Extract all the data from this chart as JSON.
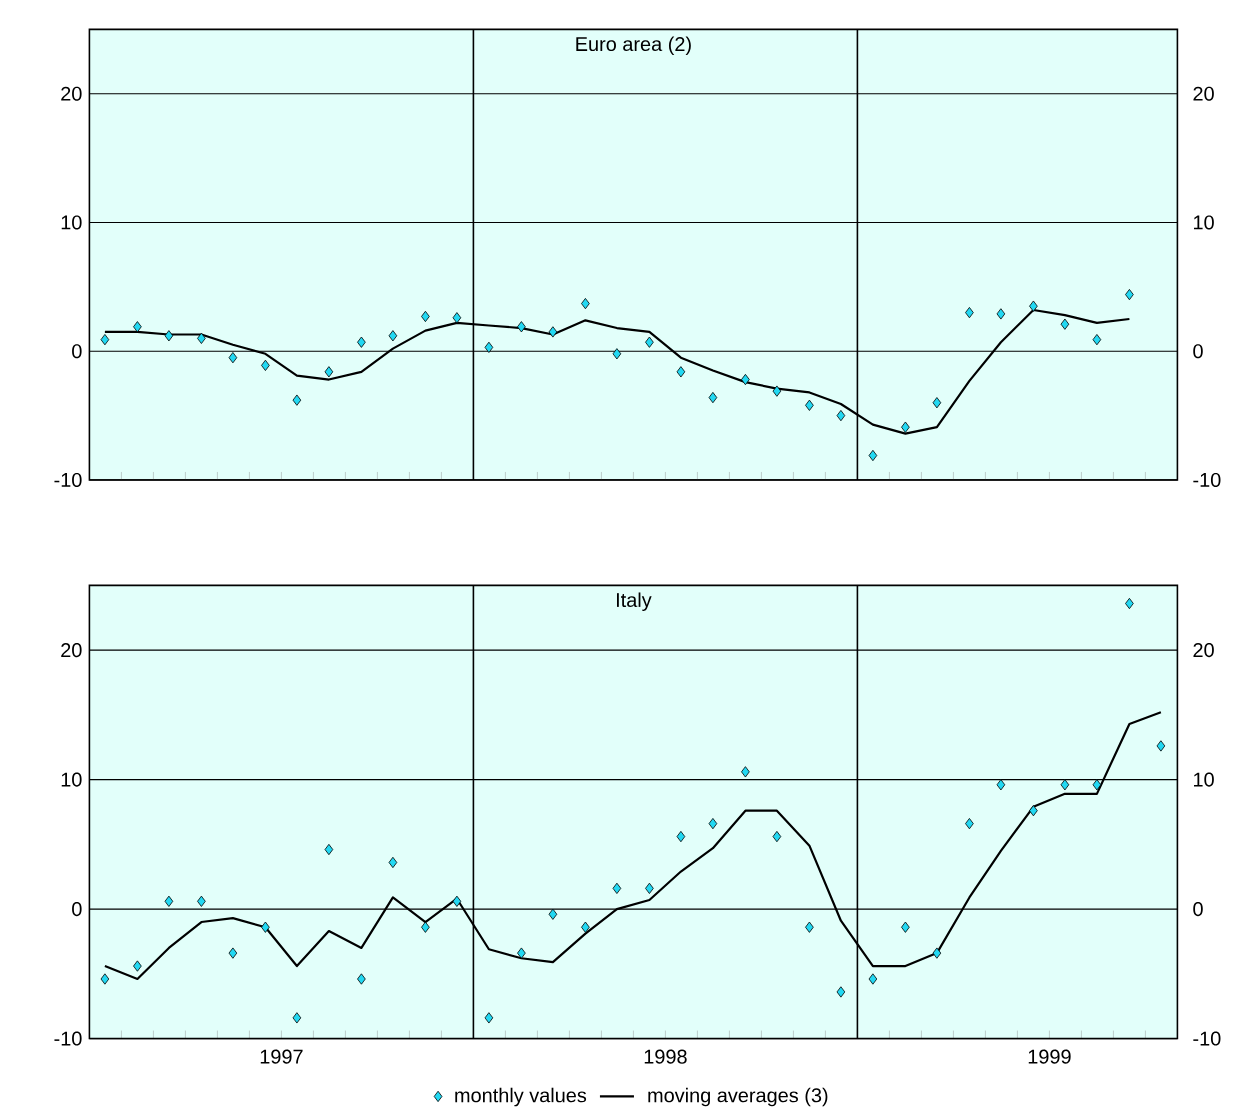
{
  "chart_data": [
    {
      "type": "line",
      "title": "Euro area (2)",
      "xlim": [
        "1997-01-01",
        "1999-11-01"
      ],
      "ylim": [
        -10,
        25
      ],
      "yticks": [
        -10,
        0,
        10,
        20
      ],
      "y2lim": [
        -10,
        25
      ],
      "y2ticks": [
        -10,
        0,
        10,
        20
      ],
      "xticks": [
        {
          "value": "1997-02-01",
          "label": null
        },
        {
          "value": "1997-03-01",
          "label": null
        },
        {
          "value": "1997-04-01",
          "label": null
        },
        {
          "value": "1997-05-01",
          "label": null
        },
        {
          "value": "1997-06-01",
          "label": null
        },
        {
          "value": "1997-07-01",
          "label": null
        },
        {
          "value": "1997-08-01",
          "label": null
        },
        {
          "value": "1997-09-01",
          "label": null
        },
        {
          "value": "1997-10-01",
          "label": null
        },
        {
          "value": "1997-11-01",
          "label": null
        },
        {
          "value": "1997-12-01",
          "label": null
        },
        {
          "value": "1998-01-01",
          "label": null
        },
        {
          "value": "1998-02-01",
          "label": null
        },
        {
          "value": "1998-03-01",
          "label": null
        },
        {
          "value": "1998-04-01",
          "label": null
        },
        {
          "value": "1998-05-01",
          "label": null
        },
        {
          "value": "1998-06-01",
          "label": null
        },
        {
          "value": "1998-07-01",
          "label": null
        },
        {
          "value": "1998-08-01",
          "label": null
        },
        {
          "value": "1998-09-01",
          "label": null
        },
        {
          "value": "1998-10-01",
          "label": null
        },
        {
          "value": "1998-11-01",
          "label": null
        },
        {
          "value": "1998-12-01",
          "label": null
        },
        {
          "value": "1999-01-01",
          "label": null
        },
        {
          "value": "1999-02-01",
          "label": null
        },
        {
          "value": "1999-03-01",
          "label": null
        },
        {
          "value": "1999-04-01",
          "label": null
        },
        {
          "value": "1999-05-01",
          "label": null
        },
        {
          "value": "1999-06-01",
          "label": null
        },
        {
          "value": "1999-07-01",
          "label": null
        },
        {
          "value": "1999-08-01",
          "label": null
        },
        {
          "value": "1999-09-01",
          "label": null
        },
        {
          "value": "1999-10-01",
          "label": null
        }
      ],
      "tick_labels": "y",
      "grid": "y",
      "legend": false,
      "ref_lines": [
        {
          "axis": "x",
          "value": "1998-01-01",
          "color": "#000000"
        },
        {
          "axis": "x",
          "value": "1999-01-01",
          "color": "#000000"
        }
      ],
      "series": [
        {
          "type": "scatter",
          "marker": "diamond",
          "color": "#22d8f2",
          "x": [
            "1997-01-16",
            "1997-02-15",
            "1997-03-16",
            "1997-04-16",
            "1997-05-16",
            "1997-06-16",
            "1997-07-16",
            "1997-08-16",
            "1997-09-16",
            "1997-10-16",
            "1997-11-16",
            "1997-12-16",
            "1998-01-16",
            "1998-02-15",
            "1998-03-16",
            "1998-04-16",
            "1998-05-16",
            "1998-06-16",
            "1998-07-16",
            "1998-08-16",
            "1998-09-16",
            "1998-10-16",
            "1998-11-16",
            "1998-12-16",
            "1999-01-16",
            "1999-02-15",
            "1999-03-16",
            "1999-04-16",
            "1999-05-16",
            "1999-06-16",
            "1999-07-16",
            "1999-08-16",
            "1999-09-16"
          ],
          "values": [
            0.9,
            1.9,
            1.2,
            1.0,
            -0.5,
            -1.1,
            -3.8,
            -1.6,
            0.7,
            1.2,
            2.7,
            2.6,
            0.3,
            1.9,
            1.5,
            3.7,
            -0.2,
            0.7,
            -1.6,
            -3.6,
            -2.2,
            -3.1,
            -4.2,
            -5.0,
            -8.1,
            -5.9,
            -4.0,
            3.0,
            2.9,
            3.5,
            2.1,
            0.9,
            4.4
          ]
        },
        {
          "marker": "none",
          "color": "#000000",
          "x": [
            "1997-01-16",
            "1997-02-15",
            "1997-03-16",
            "1997-04-16",
            "1997-05-16",
            "1997-06-16",
            "1997-07-16",
            "1997-08-16",
            "1997-09-16",
            "1997-10-16",
            "1997-11-16",
            "1997-12-16",
            "1998-01-16",
            "1998-02-15",
            "1998-03-16",
            "1998-04-16",
            "1998-05-16",
            "1998-06-16",
            "1998-07-16",
            "1998-08-16",
            "1998-09-16",
            "1998-10-16",
            "1998-11-16",
            "1998-12-16",
            "1999-01-16",
            "1999-02-15",
            "1999-03-16",
            "1999-04-16",
            "1999-05-16",
            "1999-06-16",
            "1999-07-16",
            "1999-08-16",
            "1999-09-16"
          ],
          "values": [
            1.5,
            1.5,
            1.3,
            1.3,
            0.5,
            -0.2,
            -1.9,
            -2.2,
            -1.6,
            0.2,
            1.6,
            2.2,
            2.0,
            1.8,
            1.3,
            2.4,
            1.8,
            1.5,
            -0.5,
            -1.5,
            -2.4,
            -2.9,
            -3.2,
            -4.1,
            -5.7,
            -6.4,
            -5.9,
            -2.3,
            0.7,
            3.2,
            2.8,
            2.2,
            2.5
          ]
        }
      ]
    },
    {
      "type": "line",
      "title": "Italy",
      "xlim": [
        "1997-01-01",
        "1999-11-01"
      ],
      "ylim": [
        -10,
        25
      ],
      "yticks": [
        -10,
        0,
        10,
        20
      ],
      "y2lim": [
        -10,
        25
      ],
      "y2ticks": [
        -10,
        0,
        10,
        20
      ],
      "xticks": [
        {
          "value": "1997-02-01",
          "label": null
        },
        {
          "value": "1997-03-01",
          "label": null
        },
        {
          "value": "1997-04-01",
          "label": null
        },
        {
          "value": "1997-05-01",
          "label": null
        },
        {
          "value": "1997-06-01",
          "label": null
        },
        {
          "value": "1997-07-01",
          "label": "1997"
        },
        {
          "value": "1997-08-01",
          "label": null
        },
        {
          "value": "1997-09-01",
          "label": null
        },
        {
          "value": "1997-10-01",
          "label": null
        },
        {
          "value": "1997-11-01",
          "label": null
        },
        {
          "value": "1997-12-01",
          "label": null
        },
        {
          "value": "1998-01-01",
          "label": null
        },
        {
          "value": "1998-02-01",
          "label": null
        },
        {
          "value": "1998-03-01",
          "label": null
        },
        {
          "value": "1998-04-01",
          "label": null
        },
        {
          "value": "1998-05-01",
          "label": null
        },
        {
          "value": "1998-06-01",
          "label": null
        },
        {
          "value": "1998-07-01",
          "label": "1998"
        },
        {
          "value": "1998-08-01",
          "label": null
        },
        {
          "value": "1998-09-01",
          "label": null
        },
        {
          "value": "1998-10-01",
          "label": null
        },
        {
          "value": "1998-11-01",
          "label": null
        },
        {
          "value": "1998-12-01",
          "label": null
        },
        {
          "value": "1999-01-01",
          "label": null
        },
        {
          "value": "1999-02-01",
          "label": null
        },
        {
          "value": "1999-03-01",
          "label": null
        },
        {
          "value": "1999-04-01",
          "label": null
        },
        {
          "value": "1999-05-01",
          "label": null
        },
        {
          "value": "1999-06-01",
          "label": null
        },
        {
          "value": "1999-07-01",
          "label": "1999"
        },
        {
          "value": "1999-08-01",
          "label": null
        },
        {
          "value": "1999-09-01",
          "label": null
        },
        {
          "value": "1999-10-01",
          "label": null
        }
      ],
      "grid": "y",
      "legend": "bottom",
      "ref_lines": [
        {
          "axis": "x",
          "value": "1998-01-01",
          "color": "#000000"
        },
        {
          "axis": "x",
          "value": "1999-01-01",
          "color": "#000000"
        }
      ],
      "series": [
        {
          "name": "monthly values",
          "type": "scatter",
          "marker": "diamond",
          "color": "#22d8f2",
          "x": [
            "1997-01-16",
            "1997-02-15",
            "1997-03-16",
            "1997-04-16",
            "1997-05-16",
            "1997-06-16",
            "1997-07-16",
            "1997-08-16",
            "1997-09-16",
            "1997-10-16",
            "1997-11-16",
            "1997-12-16",
            "1998-01-16",
            "1998-02-15",
            "1998-03-16",
            "1998-04-16",
            "1998-05-16",
            "1998-06-16",
            "1998-07-16",
            "1998-08-16",
            "1998-09-16",
            "1998-10-16",
            "1998-11-16",
            "1998-12-16",
            "1999-01-16",
            "1999-02-15",
            "1999-03-16",
            "1999-04-16",
            "1999-05-16",
            "1999-06-16",
            "1999-07-16",
            "1999-08-16",
            "1999-09-16",
            "1999-10-16"
          ],
          "values": [
            -5.4,
            -4.4,
            0.6,
            0.6,
            -3.4,
            -1.4,
            -8.4,
            4.6,
            -5.4,
            3.6,
            -1.4,
            0.6,
            -8.4,
            -3.4,
            -0.4,
            -1.4,
            1.6,
            1.6,
            5.6,
            6.6,
            10.6,
            5.6,
            -1.4,
            -6.4,
            -5.4,
            -1.4,
            -3.4,
            6.6,
            9.6,
            7.6,
            9.6,
            9.6,
            23.6,
            12.6
          ]
        },
        {
          "name": "moving averages (3)",
          "marker": "none",
          "color": "#000000",
          "x": [
            "1997-01-16",
            "1997-02-15",
            "1997-03-16",
            "1997-04-16",
            "1997-05-16",
            "1997-06-16",
            "1997-07-16",
            "1997-08-16",
            "1997-09-16",
            "1997-10-16",
            "1997-11-16",
            "1997-12-16",
            "1998-01-16",
            "1998-02-15",
            "1998-03-16",
            "1998-04-16",
            "1998-05-16",
            "1998-06-16",
            "1998-07-16",
            "1998-08-16",
            "1998-09-16",
            "1998-10-16",
            "1998-11-16",
            "1998-12-16",
            "1999-01-16",
            "1999-02-15",
            "1999-03-16",
            "1999-04-16",
            "1999-05-16",
            "1999-06-16",
            "1999-07-16",
            "1999-08-16",
            "1999-09-16",
            "1999-10-16"
          ],
          "values": [
            -4.4,
            -5.4,
            -3.0,
            -1.0,
            -0.7,
            -1.4,
            -4.4,
            -1.7,
            -3.0,
            0.9,
            -1.0,
            0.8,
            -3.1,
            -3.8,
            -4.1,
            -1.9,
            0.0,
            0.7,
            2.9,
            4.7,
            7.6,
            7.6,
            4.9,
            -0.9,
            -4.4,
            -4.4,
            -3.4,
            0.9,
            4.5,
            7.9,
            8.9,
            8.9,
            14.3,
            15.2
          ]
        }
      ]
    }
  ]
}
